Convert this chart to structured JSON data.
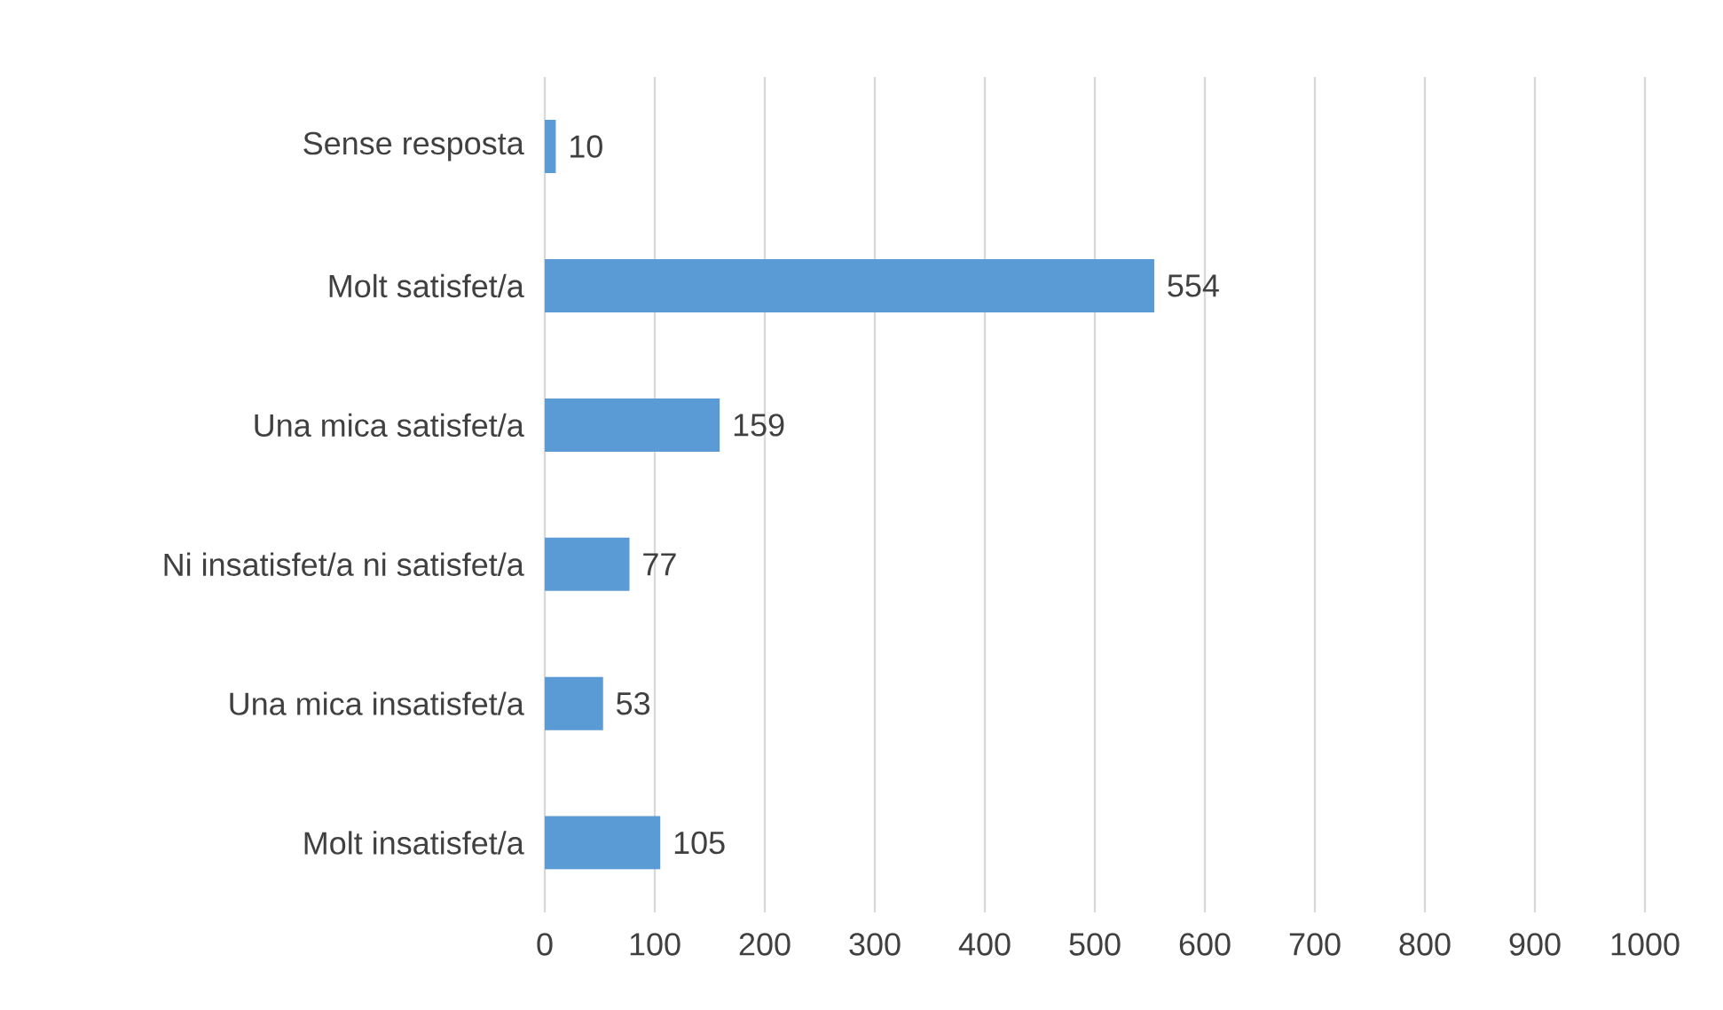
{
  "chart_data": {
    "type": "bar",
    "orientation": "horizontal",
    "categories": [
      "Sense resposta",
      "Molt satisfet/a",
      "Una mica satisfet/a",
      "Ni insatisfet/a ni satisfet/a",
      "Una mica insatisfet/a",
      "Molt insatisfet/a"
    ],
    "values": [
      10,
      554,
      159,
      77,
      53,
      105
    ],
    "color": "#5b9bd5",
    "xlim": [
      0,
      1000
    ],
    "xticks": [
      0,
      100,
      200,
      300,
      400,
      500,
      600,
      700,
      800,
      900,
      1000
    ],
    "grid": "x",
    "data_labels": true
  }
}
